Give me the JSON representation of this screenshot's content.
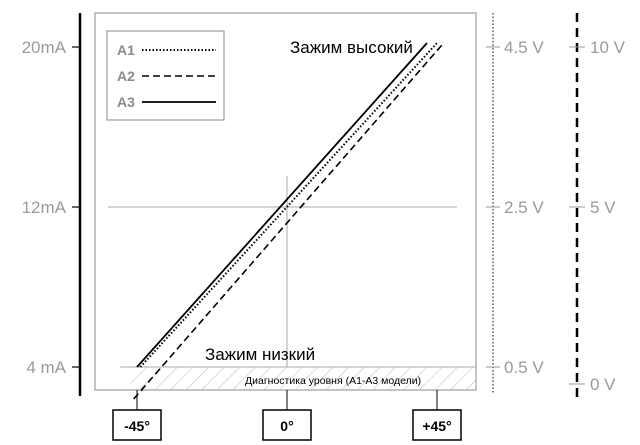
{
  "chart_data": {
    "type": "line",
    "x_unit": "°",
    "x_ticks": [
      "-45°",
      "0°",
      "+45°"
    ],
    "x_range": [
      -45,
      45
    ],
    "y_range_mA": [
      4,
      20
    ],
    "y_ticks_left": [
      "20mA",
      "12mA",
      "4 mA"
    ],
    "y_ticks_right_1": [
      "4.5 V",
      "2.5 V",
      "0.5 V"
    ],
    "y_ticks_right_2": [
      "10 V",
      "5 V",
      "0 V"
    ],
    "series": [
      {
        "name": "A1",
        "style": "dotted",
        "points": [
          [
            -44,
            4.0
          ],
          [
            45,
            20.2
          ]
        ]
      },
      {
        "name": "A2",
        "style": "dashed",
        "points": [
          [
            -46,
            2.4
          ],
          [
            47,
            20.2
          ]
        ]
      },
      {
        "name": "A3",
        "style": "solid",
        "points": [
          [
            -45,
            4.0
          ],
          [
            42,
            20.2
          ]
        ]
      }
    ],
    "annotations": {
      "clamp_high": "Зажим высокий",
      "clamp_low": "Зажим низкий",
      "diagnostics": "Диагностика уровня  (A1-A3 модели)"
    },
    "grid": "crosshair at 0° / 12 mA",
    "legend_position": "top-left"
  }
}
